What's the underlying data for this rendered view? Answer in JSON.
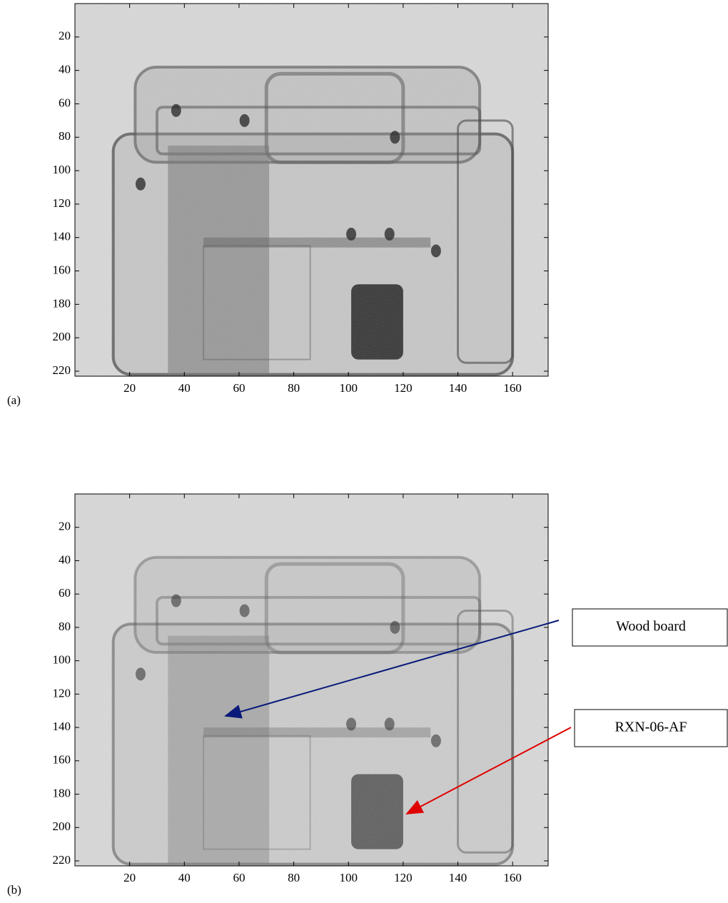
{
  "figure": {
    "panels": [
      {
        "label": "(a)",
        "xlim": [
          0,
          173
        ],
        "ylim": [
          0,
          223
        ],
        "y_reversed": true,
        "xticks": [
          20,
          40,
          60,
          80,
          100,
          120,
          140,
          160
        ],
        "yticks": [
          20,
          40,
          60,
          80,
          100,
          120,
          140,
          160,
          180,
          200,
          220
        ]
      },
      {
        "label": "(b)",
        "xlim": [
          0,
          173
        ],
        "ylim": [
          0,
          223
        ],
        "y_reversed": true,
        "xticks": [
          20,
          40,
          60,
          80,
          100,
          120,
          140,
          160
        ],
        "yticks": [
          20,
          40,
          60,
          80,
          100,
          120,
          140,
          160,
          180,
          200,
          220
        ],
        "annotations": [
          {
            "text": "Wood board"
          },
          {
            "text": "RXN-06-AF"
          }
        ]
      }
    ]
  }
}
